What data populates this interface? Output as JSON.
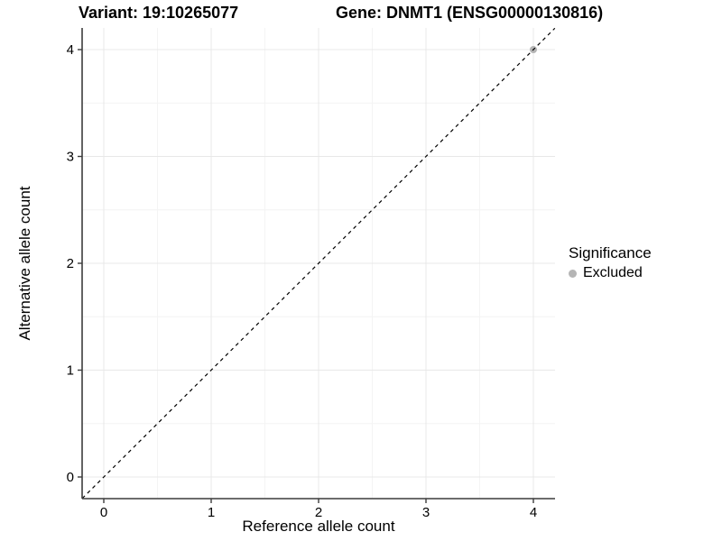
{
  "titles": {
    "variant": "Variant: 19:10265077",
    "gene": "Gene: DNMT1 (ENSG00000130816)"
  },
  "colors": {
    "background": "#ffffff",
    "grid_major": "#e8e8e8",
    "grid_minor": "#f4f4f4",
    "axis": "#3c3c3c",
    "text": "#000000",
    "excluded": "#b5b5b5",
    "identity_line": "#000000"
  },
  "chart_data": {
    "type": "scatter",
    "title": "Variant: 19:10265077   Gene: DNMT1 (ENSG00000130816)",
    "xlabel": "Reference allele count",
    "ylabel": "Alternative allele count",
    "xlim": [
      -0.2,
      4.2
    ],
    "ylim": [
      -0.2,
      4.2
    ],
    "x_ticks": [
      0,
      1,
      2,
      3,
      4
    ],
    "y_ticks": [
      0,
      1,
      2,
      3,
      4
    ],
    "x_minor": [
      0.5,
      1.5,
      2.5,
      3.5
    ],
    "y_minor": [
      0.5,
      1.5,
      2.5,
      3.5
    ],
    "grid": "on",
    "legend": {
      "title": "Significance",
      "position": "right",
      "entries": [
        {
          "label": "Excluded",
          "color": "#b5b5b5",
          "marker": "circle"
        }
      ]
    },
    "series": [
      {
        "name": "Excluded",
        "type": "scatter",
        "color": "#b5b5b5",
        "points": [
          {
            "x": 4,
            "y": 4
          }
        ]
      },
      {
        "name": "identity-line",
        "type": "line",
        "style": "dashed",
        "color": "#000000",
        "from": {
          "x": -0.2,
          "y": -0.2
        },
        "to": {
          "x": 4.2,
          "y": 4.2
        }
      }
    ]
  }
}
